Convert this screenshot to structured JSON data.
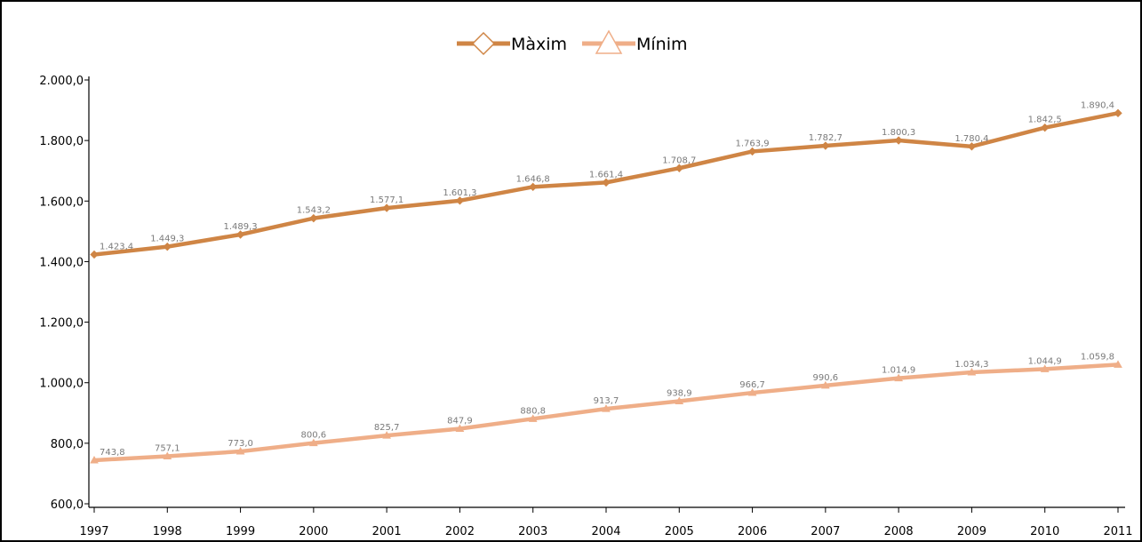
{
  "chart_data": {
    "type": "line",
    "title": "",
    "xlabel": "",
    "ylabel": "",
    "categories": [
      "1997",
      "1998",
      "1999",
      "2000",
      "2001",
      "2002",
      "2003",
      "2004",
      "2005",
      "2006",
      "2007",
      "2008",
      "2009",
      "2010",
      "2011"
    ],
    "ylim": [
      600,
      2000
    ],
    "yticks": [
      600,
      800,
      1000,
      1200,
      1400,
      1600,
      1800,
      2000
    ],
    "ytick_labels": [
      "600,0",
      "800,0",
      "1.000,0",
      "1.200,0",
      "1.400,0",
      "1.600,0",
      "1.800,0",
      "2.000,0"
    ],
    "grid": false,
    "legend_position": "top-center",
    "series": [
      {
        "name": "Màxim",
        "color": "#cf8545",
        "marker": "diamond",
        "values": [
          1423.4,
          1449.3,
          1489.3,
          1543.2,
          1577.1,
          1601.3,
          1646.8,
          1661.4,
          1708.7,
          1763.9,
          1782.7,
          1800.3,
          1780.4,
          1842.5,
          1890.4
        ],
        "labels": [
          "1.423,4",
          "1.449,3",
          "1.489,3",
          "1.543,2",
          "1.577,1",
          "1.601,3",
          "1.646,8",
          "1.661,4",
          "1.708,7",
          "1.763,9",
          "1.782,7",
          "1.800,3",
          "1.780,4",
          "1.842,5",
          "1.890,4"
        ]
      },
      {
        "name": "Mínim",
        "color": "#efae88",
        "marker": "triangle",
        "values": [
          743.8,
          757.1,
          773.0,
          800.6,
          825.7,
          847.9,
          880.8,
          913.7,
          938.9,
          966.7,
          990.6,
          1014.9,
          1034.3,
          1044.9,
          1059.8
        ],
        "labels": [
          "743,8",
          "757,1",
          "773,0",
          "800,6",
          "825,7",
          "847,9",
          "880,8",
          "913,7",
          "938,9",
          "966,7",
          "990,6",
          "1.014,9",
          "1.034,3",
          "1.044,9",
          "1.059,8"
        ]
      }
    ]
  }
}
